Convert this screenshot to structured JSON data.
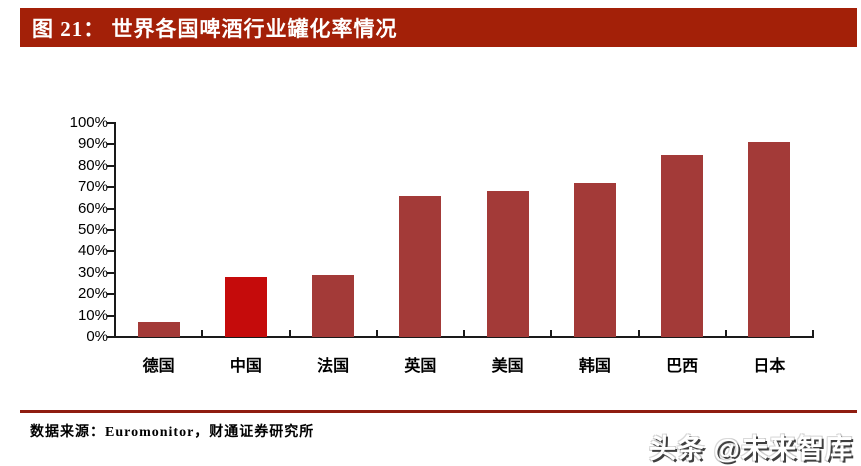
{
  "header": {
    "title": "图 21： 世界各国啤酒行业罐化率情况",
    "bg_color": "#A32008",
    "text_color": "#FFFFFF"
  },
  "chart_data": {
    "type": "bar",
    "title": "世界各国啤酒行业罐化率情况",
    "categories": [
      "德国",
      "中国",
      "法国",
      "英国",
      "美国",
      "韩国",
      "巴西",
      "日本"
    ],
    "values": [
      7,
      28,
      29,
      66,
      68,
      72,
      85,
      91
    ],
    "unit": "%",
    "xlabel": "",
    "ylabel": "",
    "ylim": [
      0,
      100
    ],
    "ytick_step": 10,
    "ytick_labels": [
      "0%",
      "10%",
      "20%",
      "30%",
      "40%",
      "50%",
      "60%",
      "70%",
      "80%",
      "90%",
      "100%"
    ],
    "grid": false,
    "legend": "none",
    "bar_color": "#A33A38",
    "highlight_index": 1,
    "highlight_color": "#C50B0B",
    "axis_color": "#1A1A1A"
  },
  "footer": {
    "source_label": "数据来源：Euromonitor，财通证券研究所",
    "divider_color": "#8F1D10"
  },
  "watermark": {
    "text": "头条 @未来智库"
  }
}
